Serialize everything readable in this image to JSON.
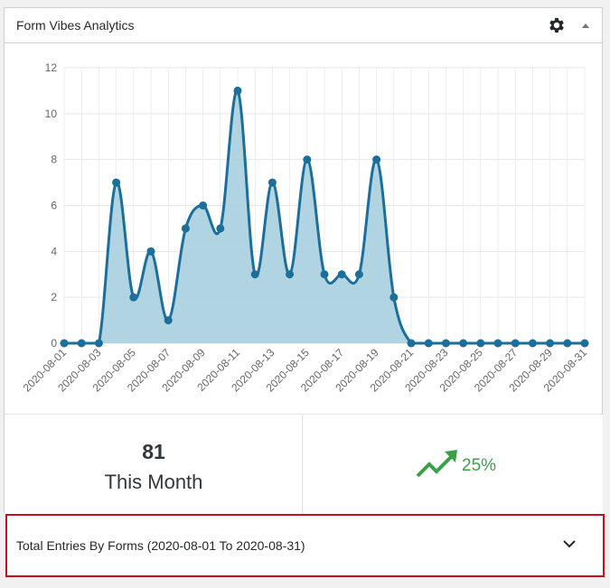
{
  "widget": {
    "title": "Form Vibes Analytics",
    "icons": {
      "settings": "gear-icon",
      "collapse": "triangle-up-icon"
    }
  },
  "colors": {
    "line": "#1b6f9a",
    "fill": "#a9cfe0",
    "trend_up": "#3aa14a",
    "highlight_border": "#c8101a"
  },
  "chart_data": {
    "type": "area",
    "x": [
      "2020-08-01",
      "2020-08-02",
      "2020-08-03",
      "2020-08-04",
      "2020-08-05",
      "2020-08-06",
      "2020-08-07",
      "2020-08-08",
      "2020-08-09",
      "2020-08-10",
      "2020-08-11",
      "2020-08-12",
      "2020-08-13",
      "2020-08-14",
      "2020-08-15",
      "2020-08-16",
      "2020-08-17",
      "2020-08-18",
      "2020-08-19",
      "2020-08-20",
      "2020-08-21",
      "2020-08-22",
      "2020-08-23",
      "2020-08-24",
      "2020-08-25",
      "2020-08-26",
      "2020-08-27",
      "2020-08-28",
      "2020-08-29",
      "2020-08-30",
      "2020-08-31"
    ],
    "series": [
      {
        "values": [
          0,
          0,
          0,
          7,
          2,
          4,
          1,
          5,
          6,
          5,
          11,
          3,
          7,
          3,
          8,
          3,
          3,
          3,
          8,
          2,
          0,
          0,
          0,
          0,
          0,
          0,
          0,
          0,
          0,
          0,
          0
        ]
      }
    ],
    "x_tick_labels": [
      "2020-08-01",
      "2020-08-03",
      "2020-08-05",
      "2020-08-07",
      "2020-08-09",
      "2020-08-11",
      "2020-08-13",
      "2020-08-15",
      "2020-08-17",
      "2020-08-19",
      "2020-08-21",
      "2020-08-23",
      "2020-08-25",
      "2020-08-27",
      "2020-08-29",
      "2020-08-31"
    ],
    "y_ticks": [
      0,
      2,
      4,
      6,
      8,
      10,
      12
    ],
    "ylim": [
      0,
      12
    ],
    "grid": true,
    "legend": "none"
  },
  "stats": {
    "total": "81",
    "period_label": "This Month",
    "trend_percent": "25%",
    "trend_icon": "trending-up-icon"
  },
  "forms_panel": {
    "title": "Total Entries By Forms (2020-08-01 To 2020-08-31)",
    "icon": "chevron-down-icon"
  }
}
